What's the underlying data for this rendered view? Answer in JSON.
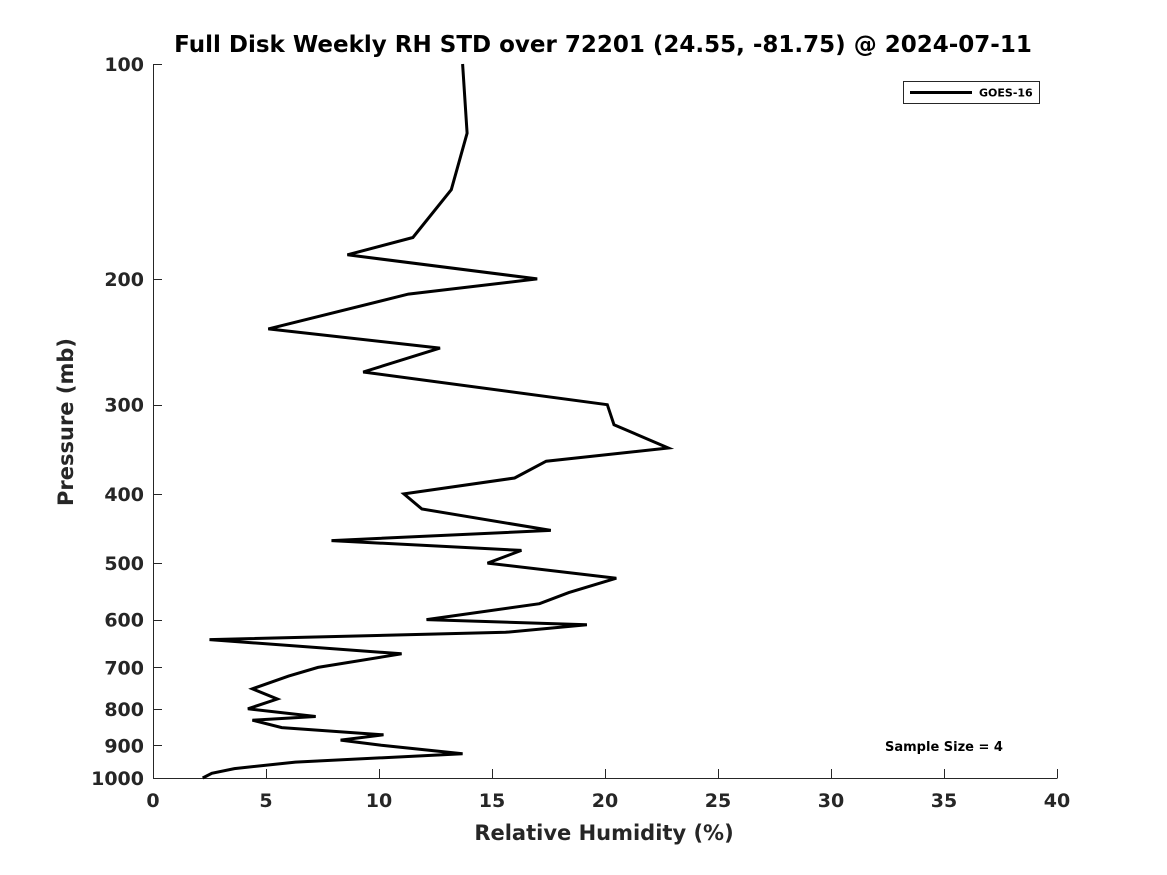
{
  "chart_data": {
    "type": "line",
    "title": "Full Disk Weekly RH STD over 72201 (24.55, -81.75) @ 2024-07-11",
    "xlabel": "Relative Humidity (%)",
    "ylabel": "Pressure (mb)",
    "xlim": [
      0,
      40
    ],
    "ylim": [
      100,
      1000
    ],
    "yscale": "log",
    "yreversed": true,
    "xticks": [
      0,
      5,
      10,
      15,
      20,
      25,
      30,
      35,
      40
    ],
    "yticks": [
      100,
      200,
      300,
      400,
      500,
      600,
      700,
      800,
      900,
      1000
    ],
    "grid": false,
    "legend": {
      "position": "top-right",
      "entries": [
        "GOES-16"
      ]
    },
    "annotation": "Sample Size = 4",
    "series": [
      {
        "name": "GOES-16",
        "color": "#000000",
        "points": [
          [
            13.7,
            100
          ],
          [
            13.9,
            125
          ],
          [
            13.2,
            150
          ],
          [
            11.5,
            175
          ],
          [
            8.6,
            185
          ],
          [
            17.0,
            200
          ],
          [
            11.3,
            210
          ],
          [
            5.1,
            235
          ],
          [
            12.7,
            250
          ],
          [
            9.3,
            270
          ],
          [
            20.1,
            300
          ],
          [
            20.4,
            320
          ],
          [
            22.8,
            345
          ],
          [
            17.4,
            360
          ],
          [
            16.0,
            380
          ],
          [
            11.1,
            400
          ],
          [
            11.9,
            420
          ],
          [
            17.6,
            450
          ],
          [
            7.9,
            465
          ],
          [
            16.3,
            480
          ],
          [
            14.8,
            500
          ],
          [
            20.5,
            525
          ],
          [
            18.4,
            550
          ],
          [
            17.1,
            570
          ],
          [
            12.1,
            600
          ],
          [
            19.2,
            610
          ],
          [
            15.6,
            625
          ],
          [
            2.5,
            640
          ],
          [
            11.0,
            670
          ],
          [
            7.3,
            700
          ],
          [
            6.0,
            720
          ],
          [
            4.4,
            750
          ],
          [
            5.5,
            775
          ],
          [
            4.2,
            800
          ],
          [
            7.2,
            820
          ],
          [
            4.4,
            830
          ],
          [
            5.7,
            850
          ],
          [
            10.2,
            870
          ],
          [
            8.3,
            885
          ],
          [
            10.1,
            900
          ],
          [
            13.7,
            925
          ],
          [
            6.3,
            950
          ],
          [
            3.6,
            970
          ],
          [
            2.6,
            985
          ],
          [
            2.2,
            1000
          ]
        ]
      }
    ]
  }
}
